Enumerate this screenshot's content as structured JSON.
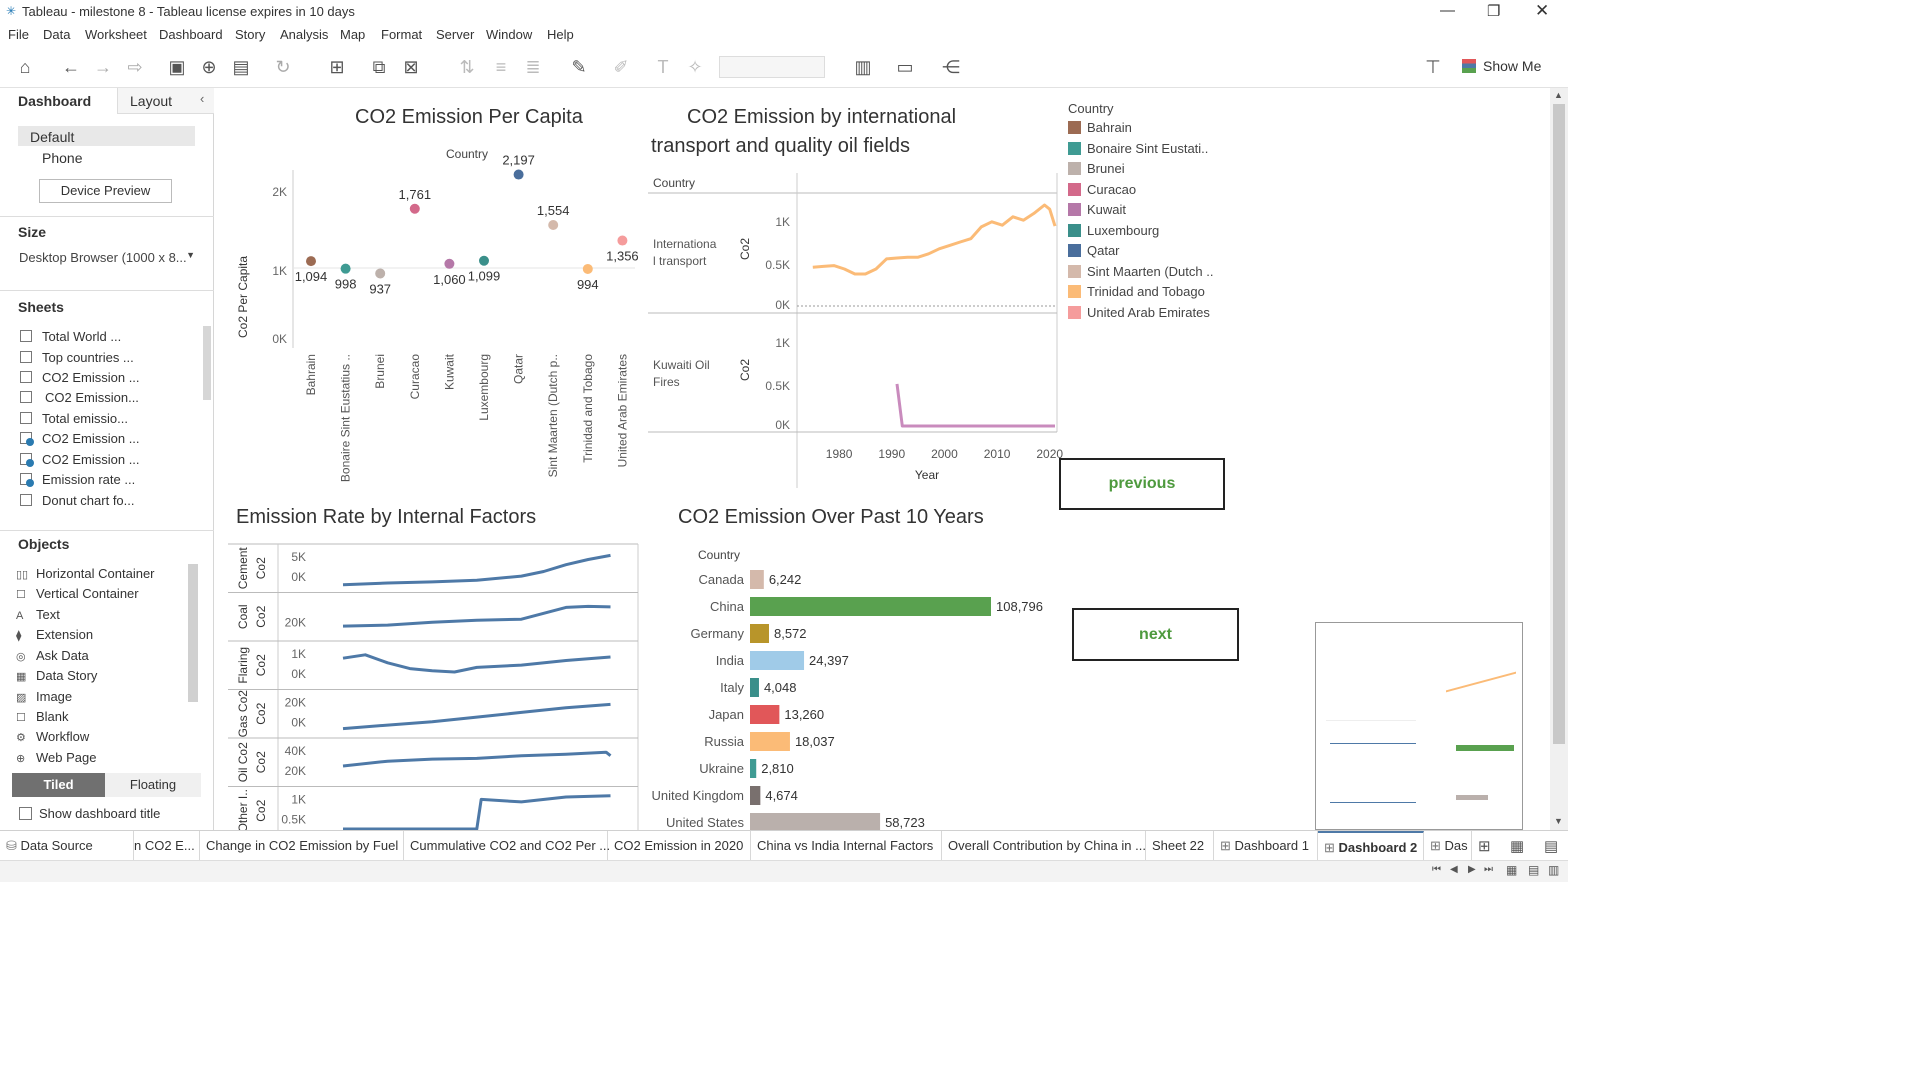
{
  "window": {
    "title": "Tableau - milestone 8 - Tableau license expires in 10 days"
  },
  "menu": [
    "File",
    "Data",
    "Worksheet",
    "Dashboard",
    "Story",
    "Analysis",
    "Map",
    "Format",
    "Server",
    "Window",
    "Help"
  ],
  "toolbar": {
    "show_me": "Show Me"
  },
  "left_panel": {
    "tab_dashboard": "Dashboard",
    "tab_layout": "Layout",
    "device_default": "Default",
    "device_phone": "Phone",
    "device_preview": "Device Preview",
    "size_title": "Size",
    "size_value": "Desktop Browser (1000 x 8...",
    "sheets_title": "Sheets",
    "sheets": [
      "Total World ...",
      "Top countries ...",
      "CO2 Emission ...",
      "CO2 Emission...",
      "Total emissio...",
      "CO2 Emission ...",
      "CO2 Emission ...",
      "Emission rate ...",
      "Donut chart fo..."
    ],
    "objects_title": "Objects",
    "objects": [
      "Horizontal Container",
      "Vertical Container",
      "Text",
      "Extension",
      "Ask Data",
      "Data Story",
      "Image",
      "Blank",
      "Workflow",
      "Web Page"
    ],
    "tiled": "Tiled",
    "floating": "Floating",
    "show_title": "Show dashboard title"
  },
  "dashboard": {
    "chart1_title": "CO2 Emission Per Capita",
    "chart1_header": "Country",
    "chart1_ylabel": "Co2 Per Capita",
    "chart1_yticks": [
      "2K",
      "1K",
      "0K"
    ],
    "chart2_title_line1": "CO2 Emission by international",
    "chart2_title_line2": "transport and quality oil fields",
    "chart2_header": "Country",
    "chart2_row1_label_a": "Internationa",
    "chart2_row1_label_b": "l transport",
    "chart2_row2_label_a": "Kuwaiti Oil",
    "chart2_row2_label_b": "Fires",
    "chart2_ylabel": "Co2",
    "chart2_yticks": [
      "1K",
      "0.5K",
      "0K"
    ],
    "chart2_xticks": [
      "1980",
      "1990",
      "2000",
      "2010",
      "2020"
    ],
    "chart2_xlabel": "Year",
    "chart3_title": "Emission Rate by Internal Factors",
    "chart3_rows": [
      {
        "label": "Cement",
        "ticks": [
          "5K",
          "0K"
        ]
      },
      {
        "label": "Coal",
        "ticks": [
          "20K"
        ]
      },
      {
        "label": "Flaring",
        "ticks": [
          "1K",
          "0K"
        ]
      },
      {
        "label": "Gas Co2",
        "ticks": [
          "20K",
          "0K"
        ]
      },
      {
        "label": "Oil Co2",
        "ticks": [
          "40K",
          "20K"
        ]
      },
      {
        "label": "Other I..",
        "ticks": [
          "1K",
          "0.5K"
        ]
      }
    ],
    "chart3_ylabel": "Co2",
    "chart4_title": "CO2 Emission Over Past 10 Years",
    "chart4_header": "Country",
    "legend_title": "Country",
    "legend": [
      {
        "name": "Bahrain",
        "color": "#9c6b53"
      },
      {
        "name": "Bonaire Sint Eustati..",
        "color": "#3f9b93"
      },
      {
        "name": "Brunei",
        "color": "#bdb1ab"
      },
      {
        "name": "Curacao",
        "color": "#d3698a"
      },
      {
        "name": "Kuwait",
        "color": "#b578a8"
      },
      {
        "name": "Luxembourg",
        "color": "#3a8f8a"
      },
      {
        "name": "Qatar",
        "color": "#4a6e9c"
      },
      {
        "name": "Sint Maarten (Dutch ..",
        "color": "#d4b9ab"
      },
      {
        "name": "Trinidad and Tobago",
        "color": "#fbbb77"
      },
      {
        "name": "United Arab Emirates",
        "color": "#f59c9c"
      }
    ],
    "previous": "previous",
    "next": "next"
  },
  "chart_data": [
    {
      "type": "scatter",
      "title": "CO2 Emission Per Capita",
      "ylabel": "Co2 Per Capita",
      "ylim": [
        0,
        2500
      ],
      "categories": [
        "Bahrain",
        "Bonaire Sint Eustatius ..",
        "Brunei",
        "Curacao",
        "Kuwait",
        "Luxembourg",
        "Qatar",
        "Sint Maarten (Dutch p..",
        "Trinidad and Tobago",
        "United Arab Emirates"
      ],
      "values": [
        1094,
        998,
        937,
        1761,
        1060,
        1099,
        2197,
        1554,
        994,
        1356
      ],
      "labels": [
        "1,094",
        "998",
        "937",
        "1,761",
        "1,060",
        "1,099",
        "2,197",
        "1,554",
        "994",
        "1,356"
      ],
      "colors": [
        "#9c6b53",
        "#3f9b93",
        "#bdb1ab",
        "#d3698a",
        "#b578a8",
        "#3a8f8a",
        "#4a6e9c",
        "#d4b9ab",
        "#fbbb77",
        "#f59c9c"
      ]
    },
    {
      "type": "line",
      "title": "CO2 Emission by international transport and quality oil fields",
      "xlabel": "Year",
      "ylabel": "Co2",
      "xlim": [
        1972,
        2021
      ],
      "ylim": [
        0,
        1300
      ],
      "series": [
        {
          "name": "International transport",
          "color": "#fbbb77",
          "x": [
            1975,
            1977,
            1979,
            1981,
            1983,
            1985,
            1987,
            1989,
            1991,
            1993,
            1995,
            1997,
            1999,
            2001,
            2003,
            2005,
            2007,
            2009,
            2011,
            2013,
            2015,
            2017,
            2019,
            2020,
            2021
          ],
          "y": [
            460,
            470,
            480,
            440,
            380,
            380,
            440,
            560,
            570,
            580,
            580,
            620,
            680,
            720,
            760,
            800,
            940,
            1000,
            960,
            1060,
            1020,
            1100,
            1200,
            1150,
            950
          ]
        },
        {
          "name": "Kuwaiti Oil Fires",
          "color": "#c98bbd",
          "x": [
            1991,
            1992,
            1995,
            2000,
            2005,
            2010,
            2015,
            2020,
            2021
          ],
          "y": [
            500,
            0,
            0,
            0,
            0,
            0,
            0,
            0,
            0
          ]
        }
      ]
    },
    {
      "type": "line",
      "title": "Emission Rate by Internal Factors",
      "xlim": [
        1960,
        2021
      ],
      "series": [
        {
          "name": "Cement",
          "ylim": [
            0,
            6000
          ],
          "x": [
            1960,
            1970,
            1980,
            1990,
            2000,
            2005,
            2010,
            2015,
            2020
          ],
          "y": [
            300,
            600,
            800,
            1100,
            1800,
            2600,
            3800,
            4700,
            5400
          ]
        },
        {
          "name": "Coal",
          "ylim": [
            0,
            35000
          ],
          "x": [
            1960,
            1970,
            1980,
            1990,
            2000,
            2005,
            2010,
            2015,
            2020
          ],
          "y": [
            9000,
            10000,
            13000,
            15000,
            16000,
            22000,
            28000,
            29000,
            28500
          ]
        },
        {
          "name": "Flaring",
          "ylim": [
            0,
            1500
          ],
          "x": [
            1960,
            1965,
            1970,
            1975,
            1980,
            1985,
            1990,
            2000,
            2010,
            2020
          ],
          "y": [
            1100,
            1250,
            900,
            650,
            550,
            500,
            700,
            800,
            1000,
            1150
          ]
        },
        {
          "name": "Gas Co2",
          "ylim": [
            0,
            30000
          ],
          "x": [
            1960,
            1970,
            1980,
            1990,
            2000,
            2010,
            2020
          ],
          "y": [
            3000,
            6000,
            9000,
            13000,
            17000,
            21000,
            24000
          ]
        },
        {
          "name": "Oil Co2",
          "ylim": [
            0,
            50000
          ],
          "x": [
            1960,
            1970,
            1980,
            1990,
            2000,
            2010,
            2019,
            2020
          ],
          "y": [
            21000,
            28000,
            31000,
            32000,
            36000,
            38000,
            41000,
            36000
          ]
        },
        {
          "name": "Other I..",
          "ylim": [
            0,
            1400
          ],
          "x": [
            1960,
            1980,
            1990,
            1991,
            2000,
            2010,
            2020
          ],
          "y": [
            0,
            0,
            0,
            1200,
            1100,
            1300,
            1350
          ]
        }
      ]
    },
    {
      "type": "bar",
      "title": "CO2 Emission Over Past 10 Years",
      "categories": [
        "Canada",
        "China",
        "Germany",
        "India",
        "Italy",
        "Japan",
        "Russia",
        "Ukraine",
        "United Kingdom",
        "United States"
      ],
      "values": [
        6242,
        108796,
        8572,
        24397,
        4048,
        13260,
        18037,
        2810,
        4674,
        58723
      ],
      "labels": [
        "6,242",
        "108,796",
        "8,572",
        "24,397",
        "4,048",
        "13,260",
        "18,037",
        "2,810",
        "4,674",
        "58,723"
      ],
      "colors": [
        "#d4b9ab",
        "#59a14f",
        "#b8952a",
        "#a0cbe8",
        "#3a8f8a",
        "#e15759",
        "#fbbb77",
        "#3f9b93",
        "#79706e",
        "#bab0ac"
      ]
    }
  ],
  "sheet_tabs": [
    "Data Source",
    "n CO2 E...",
    "Change in CO2 Emission by Fuel",
    "Cummulative CO2 and CO2 Per ...",
    "CO2 Emission in 2020",
    "China vs India Internal Factors",
    "Overall Contribution by China in ...",
    "Sheet 22",
    "Dashboard 1",
    "Dashboard 2",
    "Das"
  ]
}
